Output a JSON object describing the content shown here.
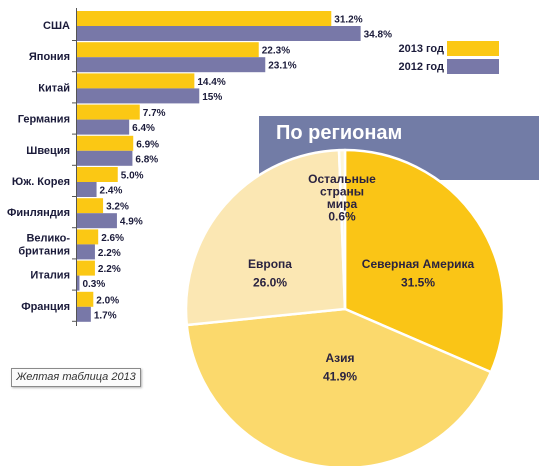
{
  "colors": {
    "year_2013": "#fbc814",
    "year_2012": "#7878a8",
    "region_panel": "#727ca6",
    "pie_north_america": "#fac516",
    "pie_asia": "#fbd96c",
    "pie_europe": "#fbe7b3",
    "pie_other": "#fdf6d8"
  },
  "source_label": "Желтая таблица 2013",
  "chart_data": [
    {
      "type": "bar",
      "orientation": "horizontal",
      "categories": [
        "США",
        "Япония",
        "Китай",
        "Германия",
        "Швеция",
        "Юж. Корея",
        "Финляндия",
        "Велико-британия",
        "Италия",
        "Франция"
      ],
      "series": [
        {
          "name": "2013 год",
          "values": [
            31.2,
            22.3,
            14.4,
            7.7,
            6.9,
            5.0,
            3.2,
            2.6,
            2.2,
            2.0
          ],
          "labels": [
            "31.2%",
            "22.3%",
            "14.4%",
            "7.7%",
            "6.9%",
            "5.0%",
            "3.2%",
            "2.6%",
            "2.2%",
            "2.0%"
          ]
        },
        {
          "name": "2012 год",
          "values": [
            34.8,
            23.1,
            15,
            6.4,
            6.8,
            2.4,
            4.9,
            2.2,
            0.3,
            1.7
          ],
          "labels": [
            "34.8%",
            "23.1%",
            "15%",
            "6.4%",
            "6.8%",
            "2.4%",
            "4.9%",
            "2.2%",
            "0.3%",
            "1.7%"
          ]
        }
      ],
      "unit": "%",
      "xlim": [
        0,
        36
      ],
      "legend": "top-right",
      "grid": false
    },
    {
      "type": "pie",
      "title": "По регионам",
      "slices": [
        {
          "label": "Северная Америка",
          "value": 31.5,
          "value_label": "31.5%"
        },
        {
          "label": "Азия",
          "value": 41.9,
          "value_label": "41.9%"
        },
        {
          "label": "Европа",
          "value": 26.0,
          "value_label": "26.0%"
        },
        {
          "label": "Остальные страны мира",
          "value": 0.6,
          "value_label": "0.6%"
        }
      ]
    }
  ]
}
